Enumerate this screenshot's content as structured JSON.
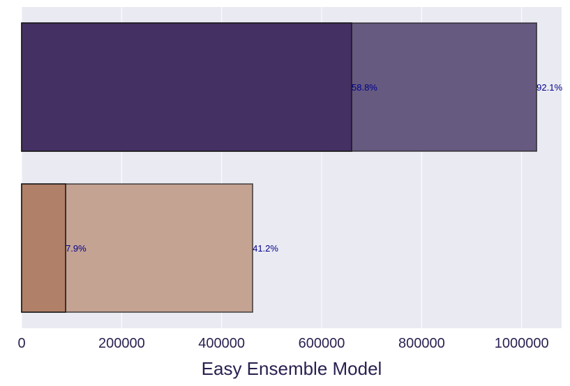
{
  "chart_data": {
    "type": "bar",
    "orientation": "horizontal",
    "title": "",
    "xlabel": "Easy Ensemble Model",
    "ylabel": "",
    "xlim": [
      0,
      1080000
    ],
    "xticks": [
      0,
      200000,
      400000,
      600000,
      800000,
      1000000
    ],
    "xtick_labels": [
      "0",
      "200000",
      "400000",
      "600000",
      "800000",
      "1000000"
    ],
    "grid": true,
    "legend": "none",
    "categories": [
      "",
      ""
    ],
    "bars": [
      {
        "back_value": 1030000,
        "back_label": "92.1%",
        "front_value": 660000,
        "front_label": "58.8%",
        "back_color": "#665a80",
        "front_color": "#443063"
      },
      {
        "back_value": 462000,
        "back_label": "41.2%",
        "front_value": 88000,
        "front_label": "7.9%",
        "back_color": "#c4a393",
        "front_color": "#b08068"
      }
    ],
    "colors": {
      "plot_background": "#eaeaf2",
      "grid": "#ffffff",
      "bar_edge": "#1a1a1a",
      "label_text": "#00008b",
      "axis_text": "#2a1f4f"
    }
  }
}
